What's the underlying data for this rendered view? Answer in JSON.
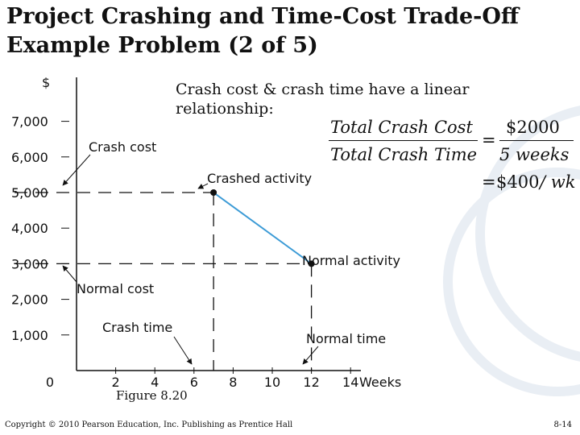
{
  "slide": {
    "title_line1": "Project Crashing and Time-Cost Trade-Off",
    "title_line2": "Example Problem (2 of 5)",
    "relation_text": "Crash cost & crash time have a linear relationship:",
    "formula": {
      "numerator_left": "Total  Crash  Cost",
      "denominator_left": "Total  Crash  Time",
      "equals1": "=",
      "numerator_right": "$2000",
      "denominator_right": "5  weeks",
      "equals2": "=",
      "result_value": "$400",
      "result_unit": "/ wk"
    },
    "figure_caption": "Figure 8.20",
    "copyright": "Copyright © 2010 Pearson Education, Inc. Publishing as Prentice Hall",
    "page_number": "8-14"
  },
  "colors": {
    "line": "#3c9bd6",
    "text": "#111111"
  },
  "chart_data": {
    "type": "line",
    "ylabel": "$",
    "xlabel": "Weeks",
    "xlim": [
      0,
      16
    ],
    "ylim": [
      0,
      8000
    ],
    "x_ticks": [
      "0",
      "2",
      "4",
      "6",
      "8",
      "10",
      "12",
      "14"
    ],
    "y_ticks": [
      "1,000",
      "2,000",
      "3,000",
      "4,000",
      "5,000",
      "6,000",
      "7,000"
    ],
    "series": [
      {
        "points": [
          {
            "x": 7,
            "y": 5000
          },
          {
            "x": 12,
            "y": 3000
          }
        ]
      }
    ],
    "annotations": {
      "crash_cost": "Crash cost",
      "normal_cost": "Normal cost",
      "crashed_activity": "Crashed activity",
      "normal_activity": "Normal activity",
      "crash_time": "Crash time",
      "normal_time": "Normal time"
    },
    "grid": false
  }
}
